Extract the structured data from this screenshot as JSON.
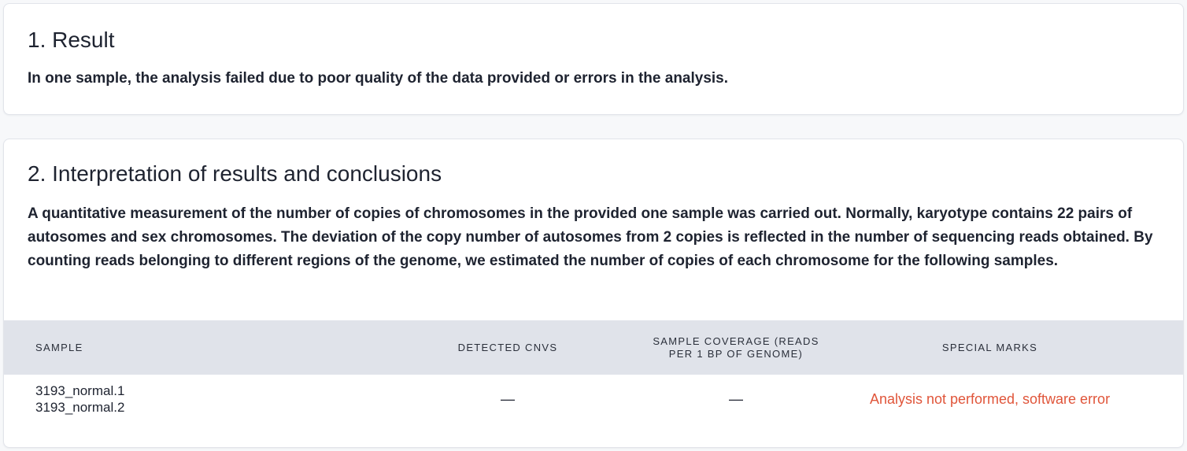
{
  "result": {
    "title": "1. Result",
    "text": "In one sample, the analysis failed due to poor quality of the data provided or errors in the analysis."
  },
  "interpretation": {
    "title": "2. Interpretation of results and conclusions",
    "text": "A quantitative measurement of the number of copies of chromosomes in the provided one sample was carried out. Normally, karyotype contains 22 pairs of autosomes and sex chromosomes. The deviation of the copy number of autosomes from 2 copies is reflected in the number of sequencing reads obtained. By counting reads belonging to different regions of the genome, we estimated the number of copies of each chromosome for the following samples."
  },
  "table": {
    "headers": {
      "sample": "SAMPLE",
      "cnvs": "DETECTED CNVS",
      "coverage": "SAMPLE COVERAGE (READS PER 1 BP OF GENOME)",
      "marks": "SPECIAL MARKS"
    },
    "rows": [
      {
        "samples": [
          "3193_normal.1",
          "3193_normal.2"
        ],
        "cnvs": "—",
        "coverage": "—",
        "marks": "Analysis not performed, software error"
      }
    ]
  },
  "colors": {
    "error_text": "#e0553a",
    "header_bg": "#e0e3ea"
  }
}
